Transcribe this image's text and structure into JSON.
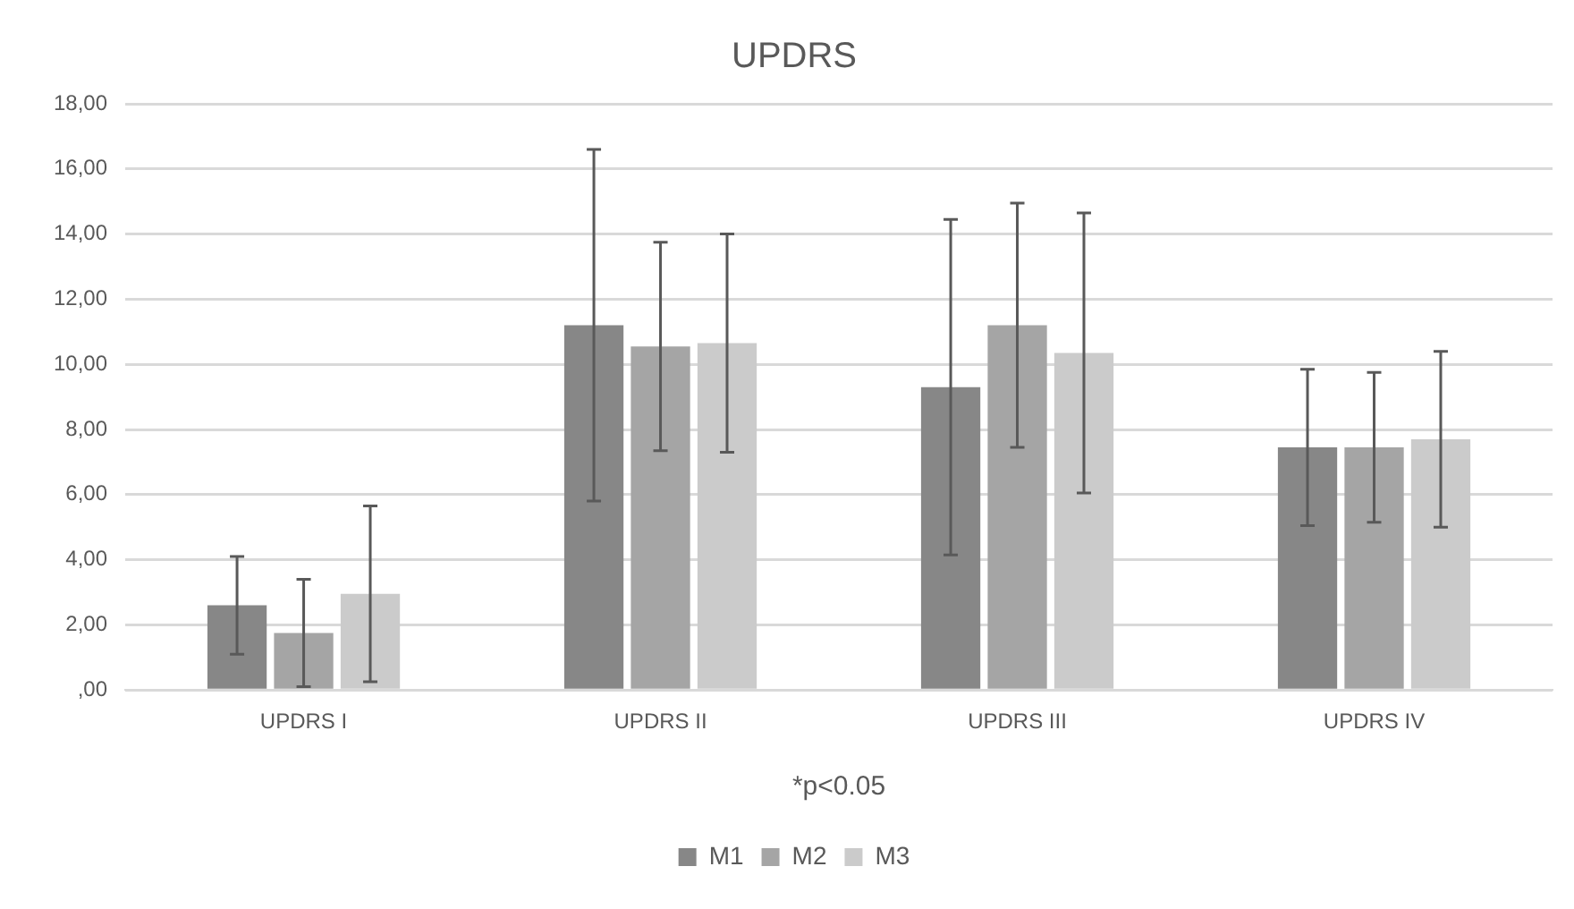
{
  "chart_data": {
    "type": "bar",
    "title": "UPDRS",
    "categories": [
      "UPDRS I",
      "UPDRS II",
      "UPDRS III",
      "UPDRS IV"
    ],
    "series": [
      {
        "name": "M1",
        "color": "#878787",
        "values": [
          2.6,
          11.2,
          9.3,
          7.45
        ],
        "errors": [
          1.5,
          5.4,
          5.15,
          2.4
        ]
      },
      {
        "name": "M2",
        "color": "#a5a5a5",
        "values": [
          1.75,
          10.55,
          11.2,
          7.45
        ],
        "errors": [
          1.65,
          3.2,
          3.75,
          2.3
        ]
      },
      {
        "name": "M3",
        "color": "#cbcbcb",
        "values": [
          2.95,
          10.65,
          10.35,
          7.7
        ],
        "errors": [
          2.7,
          3.35,
          4.3,
          2.7
        ]
      }
    ],
    "ylim": [
      0,
      18
    ],
    "yticks": [
      {
        "value": 0,
        "label": ",00"
      },
      {
        "value": 2,
        "label": "2,00"
      },
      {
        "value": 4,
        "label": "4,00"
      },
      {
        "value": 6,
        "label": "6,00"
      },
      {
        "value": 8,
        "label": "8,00"
      },
      {
        "value": 10,
        "label": "10,00"
      },
      {
        "value": 12,
        "label": "12,00"
      },
      {
        "value": 14,
        "label": "14,00"
      },
      {
        "value": 16,
        "label": "16,00"
      },
      {
        "value": 18,
        "label": "18,00"
      }
    ],
    "grid": "y",
    "legend": "bottom",
    "annotations": [
      "*p<0.05"
    ]
  }
}
